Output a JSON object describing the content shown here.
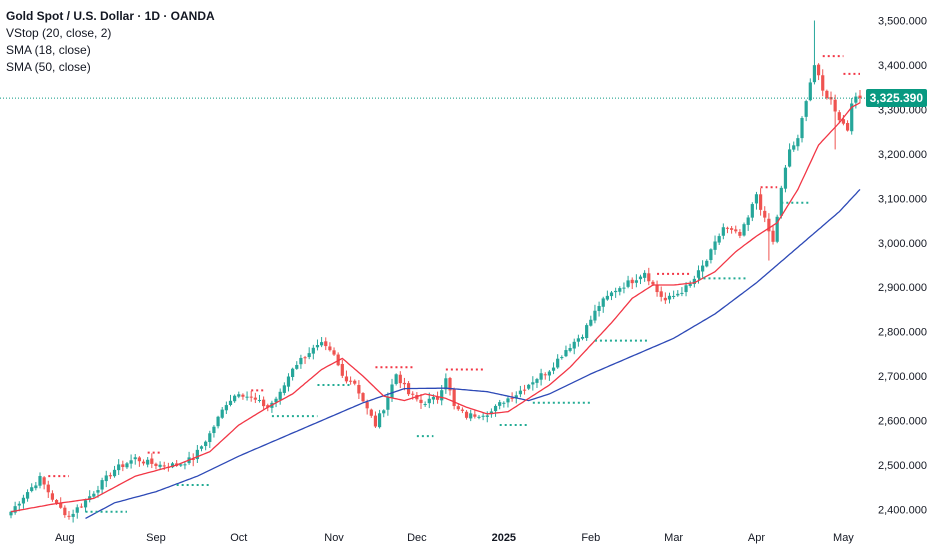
{
  "header": {
    "title": "Gold Spot / U.S. Dollar · 1D · OANDA",
    "indicators": [
      "VStop (20, close, 2)",
      "SMA (18, close)",
      "SMA (50, close)"
    ]
  },
  "last_price_label": "3,325.390",
  "colors": {
    "up": "#26a69a",
    "down": "#ef5350",
    "sma18": "#f23645",
    "sma50": "#2d49b6",
    "vstop_up": "#22ab94",
    "vstop_down": "#f23645",
    "last_price": "#089981",
    "axis_text": "#131722"
  },
  "chart_data": {
    "type": "candlestick",
    "symbol": "Gold Spot / U.S. Dollar",
    "timeframe": "1D",
    "source": "OANDA",
    "y_ticks": [
      "3,500.000",
      "3,400.000",
      "3,300.000",
      "3,200.000",
      "3,100.000",
      "3,000.000",
      "2,900.000",
      "2,800.000",
      "2,700.000",
      "2,600.000",
      "2,500.000",
      "2,400.000"
    ],
    "ylim": [
      2370,
      3510
    ],
    "x_labels": [
      {
        "label": "Aug",
        "index": 13,
        "bold": false
      },
      {
        "label": "Sep",
        "index": 35,
        "bold": false
      },
      {
        "label": "Oct",
        "index": 55,
        "bold": false
      },
      {
        "label": "Nov",
        "index": 78,
        "bold": false
      },
      {
        "label": "Dec",
        "index": 98,
        "bold": false
      },
      {
        "label": "2025",
        "index": 119,
        "bold": true
      },
      {
        "label": "Feb",
        "index": 140,
        "bold": false
      },
      {
        "label": "Mar",
        "index": 160,
        "bold": false
      },
      {
        "label": "Apr",
        "index": 180,
        "bold": false
      },
      {
        "label": "May",
        "index": 201,
        "bold": false
      }
    ],
    "n_bars": 206,
    "anchors": [
      [
        0,
        2395
      ],
      [
        3,
        2430
      ],
      [
        7,
        2470
      ],
      [
        11,
        2410
      ],
      [
        14,
        2385
      ],
      [
        18,
        2420
      ],
      [
        22,
        2460
      ],
      [
        25,
        2490
      ],
      [
        30,
        2515
      ],
      [
        33,
        2505
      ],
      [
        36,
        2500
      ],
      [
        40,
        2500
      ],
      [
        44,
        2515
      ],
      [
        48,
        2570
      ],
      [
        52,
        2640
      ],
      [
        55,
        2665
      ],
      [
        58,
        2650
      ],
      [
        62,
        2630
      ],
      [
        65,
        2660
      ],
      [
        68,
        2720
      ],
      [
        72,
        2755
      ],
      [
        75,
        2770
      ],
      [
        78,
        2745
      ],
      [
        80,
        2700
      ],
      [
        83,
        2685
      ],
      [
        86,
        2625
      ],
      [
        88,
        2590
      ],
      [
        90,
        2630
      ],
      [
        93,
        2705
      ],
      [
        96,
        2660
      ],
      [
        99,
        2640
      ],
      [
        103,
        2650
      ],
      [
        105,
        2700
      ],
      [
        107,
        2630
      ],
      [
        110,
        2610
      ],
      [
        113,
        2615
      ],
      [
        116,
        2620
      ],
      [
        119,
        2645
      ],
      [
        122,
        2660
      ],
      [
        126,
        2690
      ],
      [
        130,
        2715
      ],
      [
        134,
        2760
      ],
      [
        138,
        2795
      ],
      [
        142,
        2860
      ],
      [
        146,
        2895
      ],
      [
        150,
        2915
      ],
      [
        153,
        2935
      ],
      [
        156,
        2890
      ],
      [
        158,
        2870
      ],
      [
        160,
        2880
      ],
      [
        164,
        2905
      ],
      [
        168,
        2960
      ],
      [
        172,
        3035
      ],
      [
        176,
        3015
      ],
      [
        178,
        3055
      ],
      [
        180,
        3110
      ],
      [
        182,
        3050
      ],
      [
        184,
        3000
      ],
      [
        186,
        3120
      ],
      [
        188,
        3210
      ],
      [
        190,
        3230
      ],
      [
        192,
        3325
      ],
      [
        194,
        3400
      ],
      [
        196,
        3340
      ],
      [
        198,
        3320
      ],
      [
        200,
        3280
      ],
      [
        202,
        3255
      ],
      [
        203,
        3320
      ],
      [
        205,
        3325
      ]
    ],
    "special_bars": [
      {
        "index": 194,
        "high": 3500
      },
      {
        "index": 199,
        "low": 3210
      },
      {
        "index": 183,
        "low": 2960
      }
    ],
    "sma18_anchors": [
      [
        0,
        2395
      ],
      [
        10,
        2412
      ],
      [
        20,
        2425
      ],
      [
        30,
        2475
      ],
      [
        40,
        2500
      ],
      [
        48,
        2530
      ],
      [
        55,
        2590
      ],
      [
        62,
        2630
      ],
      [
        68,
        2660
      ],
      [
        75,
        2715
      ],
      [
        80,
        2740
      ],
      [
        85,
        2700
      ],
      [
        90,
        2655
      ],
      [
        95,
        2645
      ],
      [
        100,
        2660
      ],
      [
        105,
        2650
      ],
      [
        110,
        2630
      ],
      [
        115,
        2615
      ],
      [
        120,
        2620
      ],
      [
        125,
        2650
      ],
      [
        130,
        2680
      ],
      [
        135,
        2720
      ],
      [
        140,
        2770
      ],
      [
        145,
        2820
      ],
      [
        150,
        2875
      ],
      [
        155,
        2905
      ],
      [
        160,
        2905
      ],
      [
        165,
        2910
      ],
      [
        170,
        2935
      ],
      [
        175,
        2980
      ],
      [
        180,
        3015
      ],
      [
        185,
        3045
      ],
      [
        190,
        3120
      ],
      [
        195,
        3220
      ],
      [
        200,
        3270
      ],
      [
        203,
        3305
      ],
      [
        205,
        3315
      ]
    ],
    "sma50_anchors": [
      [
        18,
        2380
      ],
      [
        25,
        2415
      ],
      [
        35,
        2440
      ],
      [
        45,
        2475
      ],
      [
        55,
        2520
      ],
      [
        65,
        2560
      ],
      [
        75,
        2600
      ],
      [
        85,
        2640
      ],
      [
        95,
        2672
      ],
      [
        105,
        2673
      ],
      [
        115,
        2665
      ],
      [
        125,
        2645
      ],
      [
        130,
        2660
      ],
      [
        140,
        2705
      ],
      [
        150,
        2745
      ],
      [
        160,
        2785
      ],
      [
        170,
        2840
      ],
      [
        180,
        2910
      ],
      [
        190,
        2990
      ],
      [
        200,
        3070
      ],
      [
        205,
        3120
      ]
    ],
    "vstop_segments": [
      {
        "dir": "down",
        "from": 9,
        "to": 14,
        "value": 2475
      },
      {
        "dir": "up",
        "from": 18,
        "to": 28,
        "value": 2395
      },
      {
        "dir": "down",
        "from": 33,
        "to": 36,
        "value": 2528
      },
      {
        "dir": "up",
        "from": 40,
        "to": 48,
        "value": 2455
      },
      {
        "dir": "down",
        "from": 58,
        "to": 61,
        "value": 2668
      },
      {
        "dir": "up",
        "from": 63,
        "to": 74,
        "value": 2610
      },
      {
        "dir": "up",
        "from": 74,
        "to": 82,
        "value": 2680
      },
      {
        "dir": "down",
        "from": 88,
        "to": 97,
        "value": 2720
      },
      {
        "dir": "up",
        "from": 98,
        "to": 102,
        "value": 2565
      },
      {
        "dir": "down",
        "from": 105,
        "to": 114,
        "value": 2715
      },
      {
        "dir": "up",
        "from": 118,
        "to": 125,
        "value": 2590
      },
      {
        "dir": "up",
        "from": 126,
        "to": 140,
        "value": 2640
      },
      {
        "dir": "up",
        "from": 141,
        "to": 154,
        "value": 2780
      },
      {
        "dir": "down",
        "from": 156,
        "to": 164,
        "value": 2930
      },
      {
        "dir": "up",
        "from": 166,
        "to": 178,
        "value": 2920
      },
      {
        "dir": "down",
        "from": 181,
        "to": 185,
        "value": 3125
      },
      {
        "dir": "up",
        "from": 186,
        "to": 193,
        "value": 3090
      },
      {
        "dir": "down",
        "from": 196,
        "to": 201,
        "value": 3420
      },
      {
        "dir": "down",
        "from": 201,
        "to": 205,
        "value": 3380
      }
    ],
    "last_price": 3325.39
  }
}
